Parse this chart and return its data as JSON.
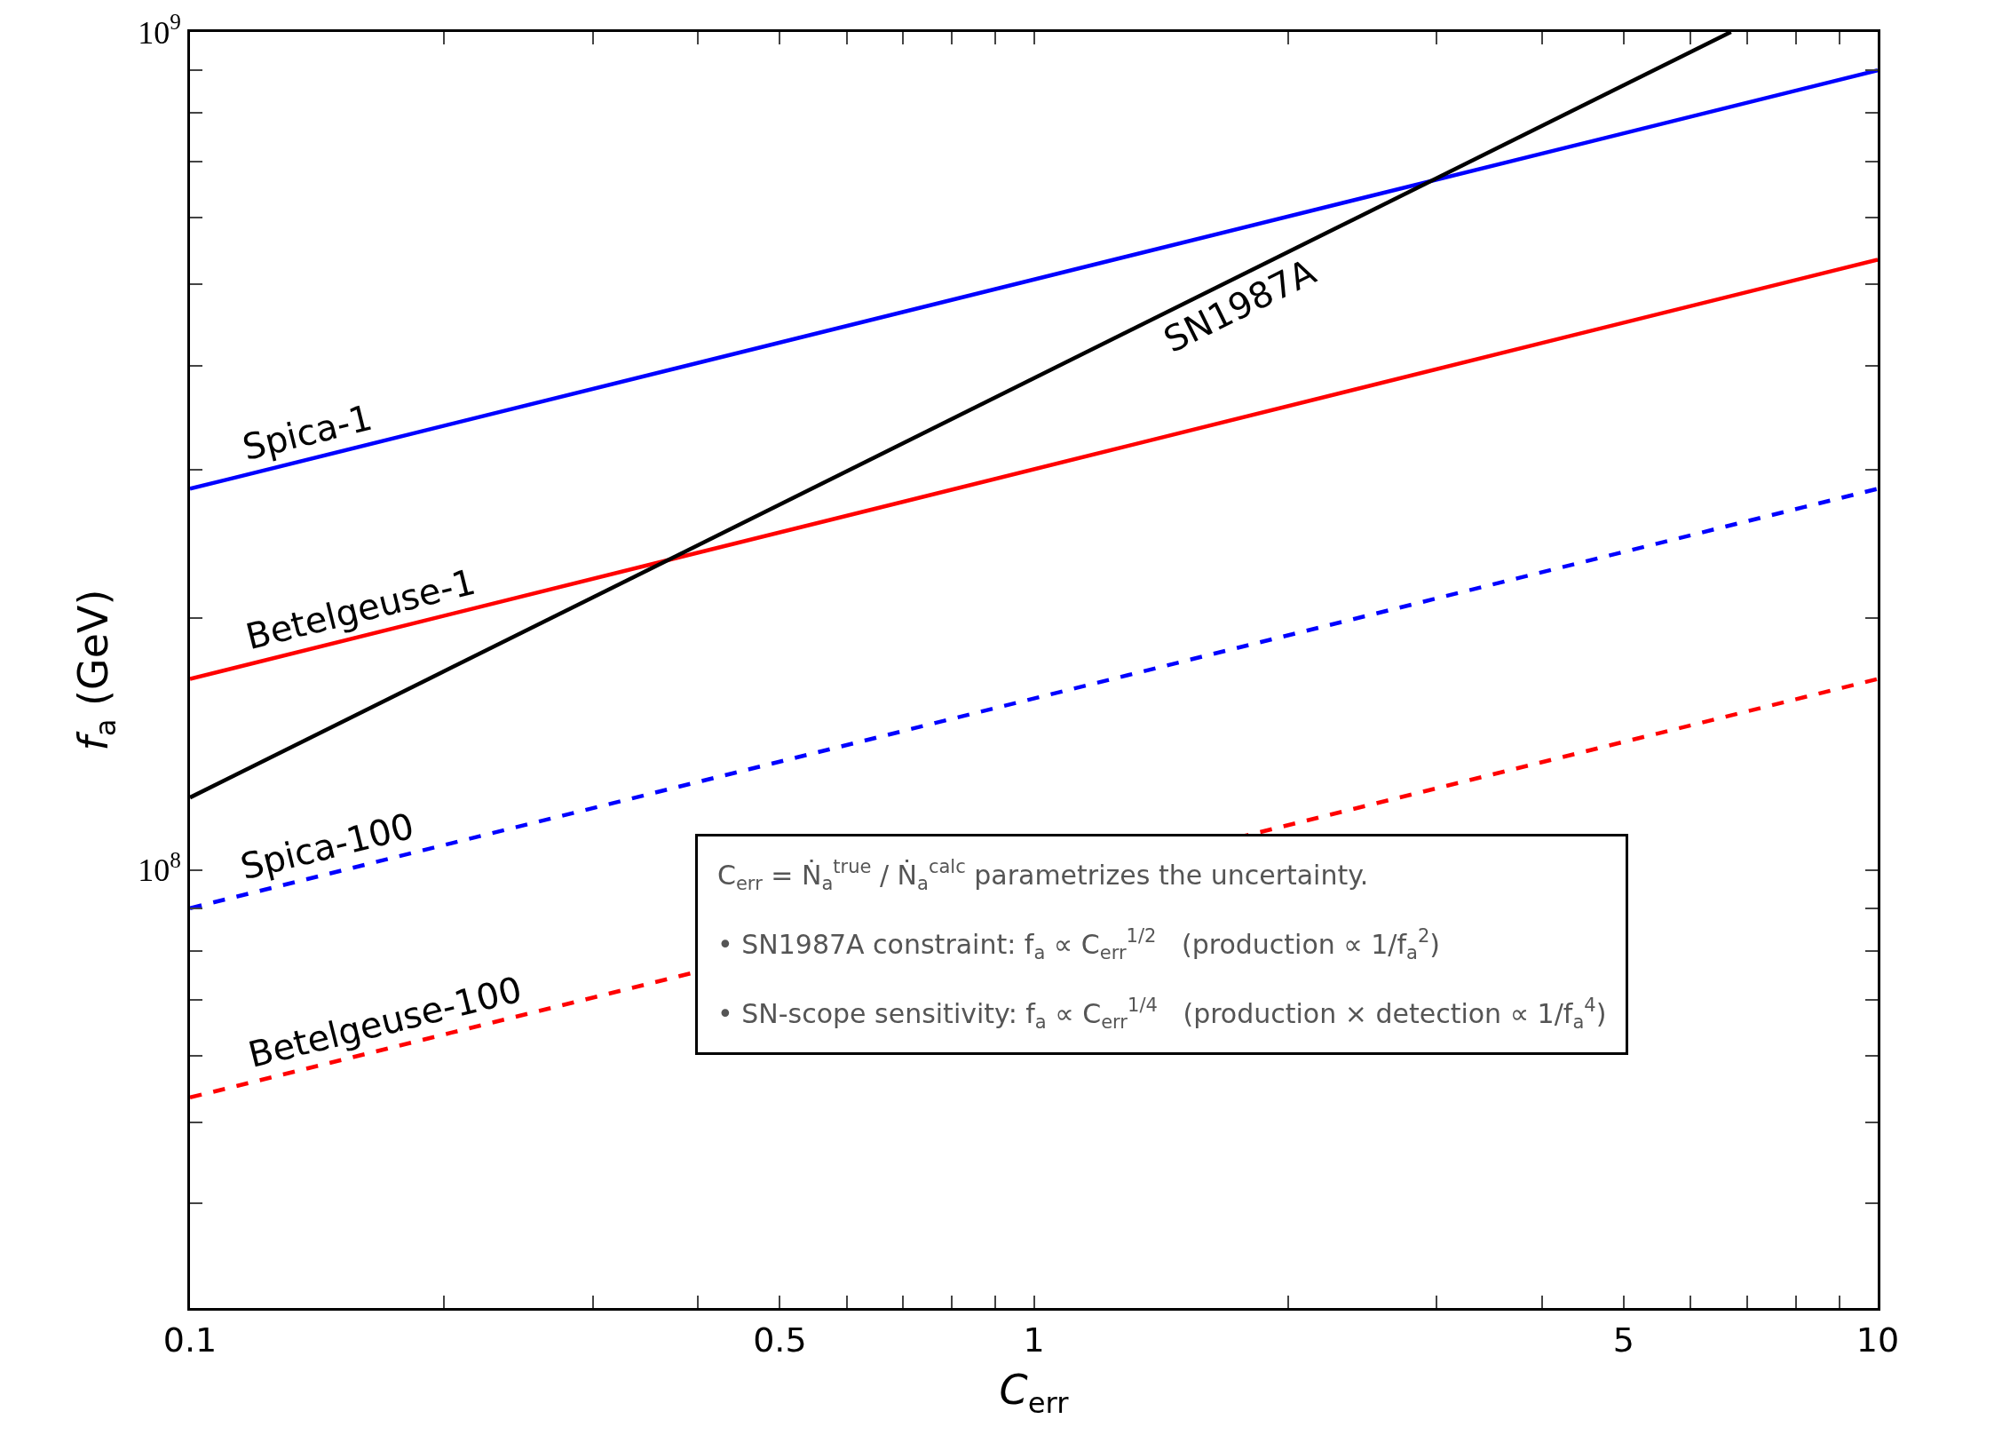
{
  "chart_data": {
    "type": "line",
    "xlabel": "C$_{err}$",
    "ylabel": "f$_{a}$ (GeV)",
    "log": "xy",
    "grid": false,
    "legend": false,
    "marker": "none",
    "xlim": [
      0.1,
      10
    ],
    "xticks": [
      0.1,
      {
        "value": 0.2,
        "label": null
      },
      {
        "value": 0.3,
        "label": null
      },
      {
        "value": 0.4,
        "label": null
      },
      0.5,
      {
        "value": 0.6,
        "label": null
      },
      {
        "value": 0.7,
        "label": null
      },
      {
        "value": 0.8,
        "label": null
      },
      {
        "value": 0.9,
        "label": null
      },
      1,
      {
        "value": 2,
        "label": null
      },
      {
        "value": 3,
        "label": null
      },
      {
        "value": 4,
        "label": null
      },
      5,
      {
        "value": 6,
        "label": null
      },
      {
        "value": 7,
        "label": null
      },
      {
        "value": 8,
        "label": null
      },
      {
        "value": 9,
        "label": null
      },
      10
    ],
    "ylim": [
      30000000,
      1000000000
    ],
    "yticks": [
      {
        "value": 40000000,
        "label": null
      },
      {
        "value": 50000000,
        "label": null
      },
      {
        "value": 60000000,
        "label": null
      },
      {
        "value": 70000000,
        "label": null
      },
      {
        "value": 80000000,
        "label": null
      },
      {
        "value": 90000000,
        "label": null
      },
      {
        "value": 100000000,
        "label": "10$^{8}$"
      },
      {
        "value": 200000000,
        "label": null
      },
      {
        "value": 300000000,
        "label": null
      },
      {
        "value": 400000000,
        "label": null
      },
      {
        "value": 500000000,
        "label": null
      },
      {
        "value": 600000000,
        "label": null
      },
      {
        "value": 700000000,
        "label": null
      },
      {
        "value": 800000000,
        "label": null
      },
      {
        "value": 900000000,
        "label": null
      },
      {
        "value": 1000000000,
        "label": "10$^{9}$"
      }
    ],
    "series": [
      {
        "name": "Spica-1",
        "color": "#0000ff",
        "line_style": "solid",
        "x": [
          0.1,
          10
        ],
        "values": [
          285000000,
          900000000
        ]
      },
      {
        "name": "Betelgeuse-1",
        "color": "#ff0000",
        "line_style": "solid",
        "x": [
          0.1,
          10
        ],
        "values": [
          169000000,
          535000000
        ]
      },
      {
        "name": "SN1987A",
        "color": "#000000",
        "line_style": "solid",
        "x": [
          0.1,
          6.7
        ],
        "values": [
          122000000,
          1000000000
        ]
      },
      {
        "name": "Spica-100",
        "color": "#0000ff",
        "line_style": "dashed",
        "x": [
          0.1,
          10
        ],
        "values": [
          90000000,
          285000000
        ]
      },
      {
        "name": "Betelgeuse-100",
        "color": "#ff0000",
        "line_style": "dashed",
        "x": [
          0.1,
          10
        ],
        "values": [
          53500000,
          169000000
        ]
      }
    ],
    "annotations": [
      "C$_{err}$ = Ṅ$_{a}$$^{true}$ / Ṅ$_{a}$$^{calc}$ parametrizes the uncertainty.",
      "• SN1987A constraint: f$_{a}$ ∝ C$_{err}$$^{1/2}$   (production ∝ 1/f$_{a}$$^{2}$)",
      "• SN-scope sensitivity: f$_{a}$ ∝ C$_{err}$$^{1/4}$   (production × detection ∝ 1/f$_{a}$$^{4}$)"
    ]
  }
}
